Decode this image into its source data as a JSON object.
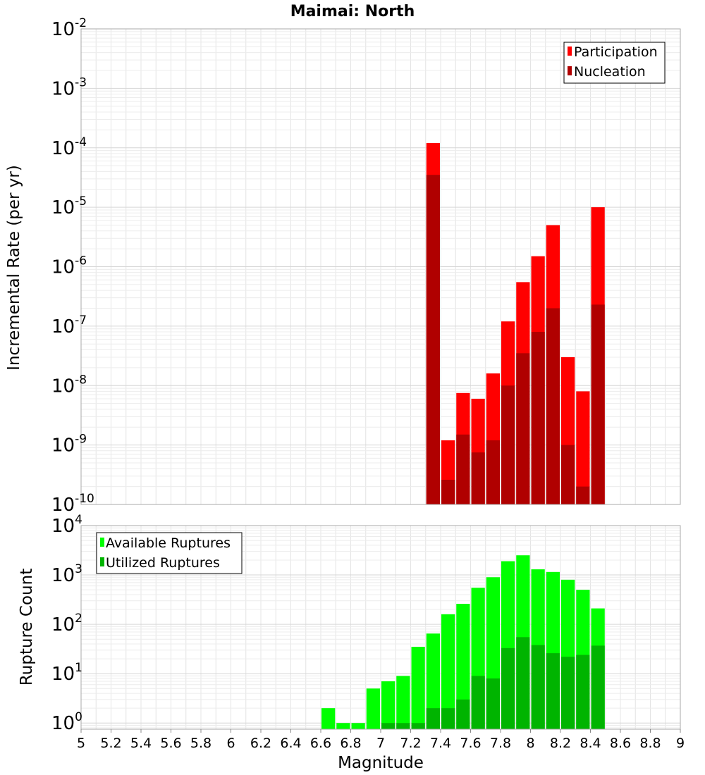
{
  "chart_data": [
    {
      "type": "bar",
      "title": "Maimai: North",
      "xlabel": "",
      "ylabel": "Incremental Rate (per yr)",
      "xlim": [
        5,
        9
      ],
      "ylim": [
        1e-10,
        0.01
      ],
      "yscale": "log",
      "grid": true,
      "legend_position": "top-right",
      "x": [
        7.35,
        7.45,
        7.55,
        7.65,
        7.75,
        7.85,
        7.95,
        8.05,
        8.15,
        8.25,
        8.35,
        8.45
      ],
      "series": [
        {
          "name": "Participation",
          "color": "#ff0000",
          "values": [
            0.00012,
            1.2e-09,
            7.5e-09,
            6e-09,
            1.6e-08,
            1.2e-07,
            5.5e-07,
            1.5e-06,
            5e-06,
            3e-08,
            8e-09,
            1e-05
          ]
        },
        {
          "name": "Nucleation",
          "color": "#b00000",
          "values": [
            3.5e-05,
            2.6e-10,
            1.5e-09,
            7.5e-10,
            1.2e-09,
            1e-08,
            3.5e-08,
            8e-08,
            2e-07,
            1e-09,
            2e-10,
            2.3e-07
          ]
        }
      ]
    },
    {
      "type": "bar",
      "title": "",
      "xlabel": "Magnitude",
      "ylabel": "Rupture Count",
      "xlim": [
        5,
        9
      ],
      "ylim": [
        0.75,
        10000
      ],
      "yscale": "log",
      "grid": true,
      "legend_position": "top-left",
      "x": [
        6.65,
        6.75,
        6.85,
        6.95,
        7.05,
        7.15,
        7.25,
        7.35,
        7.45,
        7.55,
        7.65,
        7.75,
        7.85,
        7.95,
        8.05,
        8.15,
        8.25,
        8.35,
        8.45
      ],
      "series": [
        {
          "name": "Available Ruptures",
          "color": "#00ff00",
          "values": [
            2,
            1,
            1,
            5,
            7,
            9,
            35,
            65,
            160,
            260,
            550,
            900,
            1900,
            2500,
            1300,
            1150,
            800,
            500,
            210
          ]
        },
        {
          "name": "Utilized Ruptures",
          "color": "#00b400",
          "values": [
            0,
            0,
            0,
            0,
            1,
            1,
            1,
            2,
            2,
            3,
            9,
            8,
            33,
            55,
            38,
            26,
            22,
            24,
            37
          ]
        }
      ]
    }
  ],
  "x_ticks": [
    "5",
    "5.2",
    "5.4",
    "5.6",
    "5.8",
    "6",
    "6.2",
    "6.4",
    "6.6",
    "6.8",
    "7",
    "7.2",
    "7.4",
    "7.6",
    "7.8",
    "8",
    "8.2",
    "8.4",
    "8.6",
    "8.8",
    "9"
  ],
  "top_y_tick_exponents": [
    "-2",
    "-3",
    "-4",
    "-5",
    "-6",
    "-7",
    "-8",
    "-9",
    "-10"
  ],
  "bottom_y_tick_exponents": [
    "4",
    "3",
    "2",
    "1",
    "0"
  ],
  "tick_base": "10"
}
